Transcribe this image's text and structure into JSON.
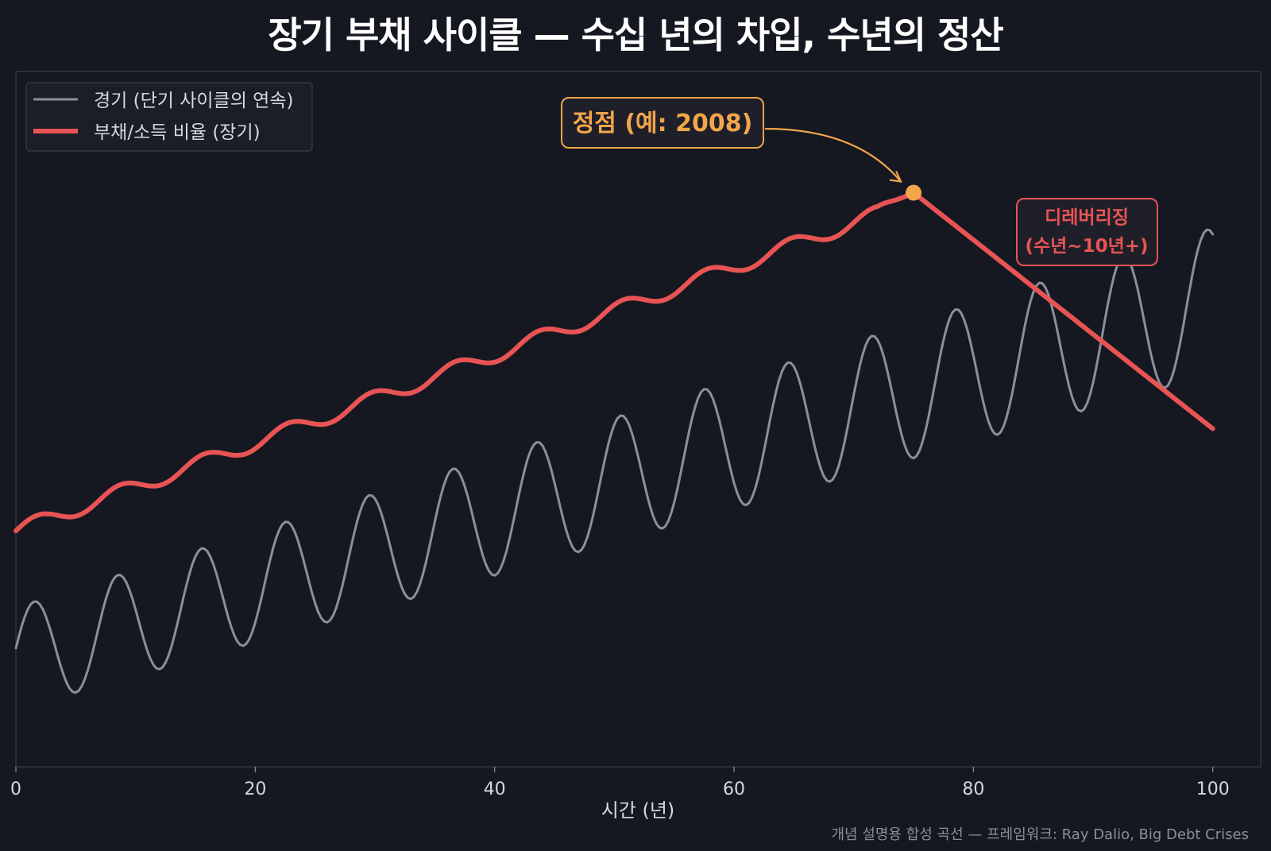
{
  "title": "장기 부채 사이클 — 수십 년의 차입, 수년의 정산",
  "footnote": "개념 설명용 합성 곡선 — 프레임워크: Ray Dalio, Big Debt Crises",
  "colors": {
    "background": "#151821",
    "plot_border": "#3a3e4a",
    "economy": "#8a8f9a",
    "debt": "#e85454",
    "peak": "#f2a54a",
    "text": "#d6d8dd"
  },
  "chart_data": {
    "type": "line",
    "title": "장기 부채 사이클 — 수십 년의 차입, 수년의 정산",
    "xlabel": "시간 (년)",
    "ylabel": "",
    "xlim": [
      0,
      104
    ],
    "ylim": [
      -2.0,
      8.9
    ],
    "x_ticks": [
      0,
      20,
      40,
      60,
      80,
      100
    ],
    "x_tick_labels": [
      "0",
      "20",
      "40",
      "60",
      "80",
      "100"
    ],
    "grid": false,
    "legend": {
      "placement": "top-left",
      "entries": [
        "경기 (단기 사이클의 연속)",
        "부채/소득 비율 (장기)"
      ]
    },
    "series": [
      {
        "name": "경기 (단기 사이클의 연속)",
        "color": "#8a8f9a",
        "model": "sine",
        "period_years": 7.0,
        "trend_start": -0.3,
        "trend_slope": 0.056,
        "amplitude_start": 0.8,
        "amplitude_end": 1.15,
        "phase": 0.2,
        "x_range": [
          0,
          100
        ],
        "sample_step": 0.25
      },
      {
        "name": "부채/소득 비율 (장기)",
        "color": "#e85454",
        "model": "stepped_rise_then_decline",
        "step_period_years": 7.0,
        "start_value": 1.7,
        "rise_slope": 0.069,
        "wave_amplitude": 0.12,
        "peak_x": 75,
        "peak_y": 7.0,
        "end_x": 100,
        "end_y": 3.3,
        "x_range": [
          0,
          100
        ],
        "sample_step": 0.25
      }
    ],
    "annotations": [
      {
        "text": "정점 (예: 2008)",
        "target_x": 75,
        "target_y": 7.0,
        "color": "#f2a54a"
      },
      {
        "text_lines": [
          "디레버리징",
          "(수년~10년+)"
        ],
        "x": 87.5,
        "y": 6.2,
        "color": "#e85454"
      }
    ]
  }
}
